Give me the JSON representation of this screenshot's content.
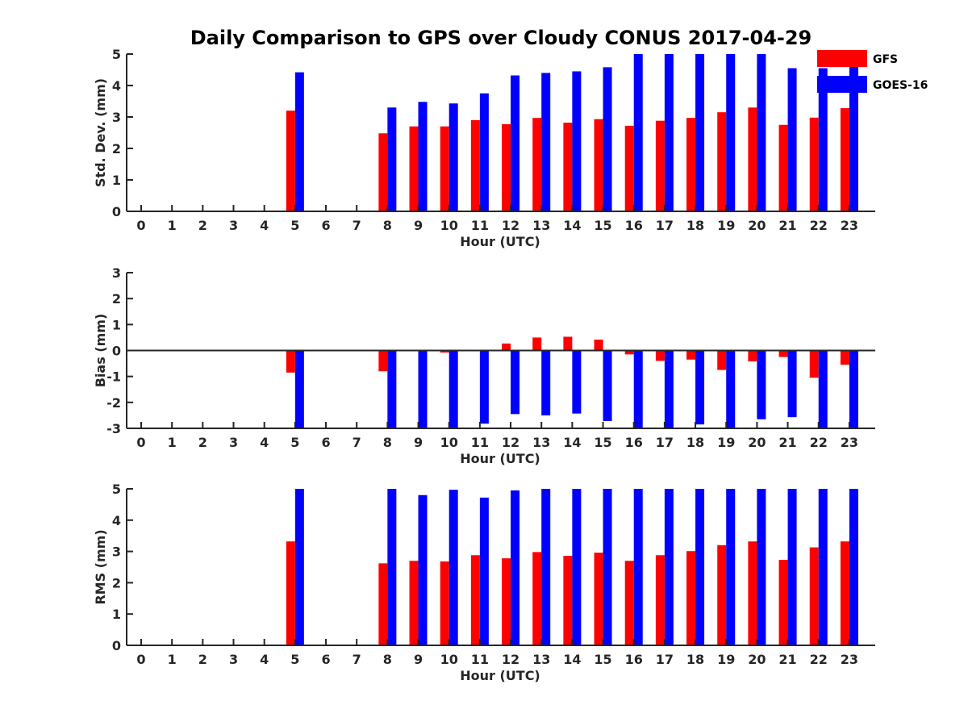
{
  "title": "Daily Comparison to GPS over Cloudy CONUS 2017-04-29",
  "colors": {
    "GFS": "#ff0000",
    "GOES-16": "#0000ff",
    "axis": "#262626"
  },
  "legend": {
    "placement": "top-right",
    "entries": [
      "GFS",
      "GOES-16"
    ]
  },
  "chart_data": [
    {
      "type": "bar",
      "ylabel": "Std. Dev. (mm)",
      "xlabel": "Hour (UTC)",
      "ylim": [
        0,
        5
      ],
      "yticks": [
        "0",
        "1",
        "2",
        "3",
        "4",
        "5"
      ],
      "categories": [
        "0",
        "1",
        "2",
        "3",
        "4",
        "5",
        "6",
        "7",
        "8",
        "9",
        "10",
        "11",
        "12",
        "13",
        "14",
        "15",
        "16",
        "17",
        "18",
        "19",
        "20",
        "21",
        "22",
        "23"
      ],
      "series": [
        {
          "name": "GFS",
          "values": [
            null,
            null,
            null,
            null,
            null,
            3.2,
            null,
            null,
            2.48,
            2.7,
            2.7,
            2.9,
            2.77,
            2.97,
            2.82,
            2.93,
            2.72,
            2.88,
            2.97,
            3.15,
            3.3,
            2.75,
            2.98,
            3.28
          ]
        },
        {
          "name": "GOES-16",
          "values": [
            null,
            null,
            null,
            null,
            null,
            4.42,
            null,
            null,
            3.3,
            3.48,
            3.43,
            3.75,
            4.32,
            4.4,
            4.45,
            4.58,
            5.0,
            5.0,
            5.0,
            5.0,
            5.0,
            4.55,
            4.55,
            4.8
          ]
        }
      ]
    },
    {
      "type": "bar",
      "ylabel": "Bias (mm)",
      "xlabel": "Hour (UTC)",
      "ylim": [
        -3,
        3
      ],
      "yticks": [
        "-3",
        "-2",
        "-1",
        "0",
        "1",
        "2",
        "3"
      ],
      "categories": [
        "0",
        "1",
        "2",
        "3",
        "4",
        "5",
        "6",
        "7",
        "8",
        "9",
        "10",
        "11",
        "12",
        "13",
        "14",
        "15",
        "16",
        "17",
        "18",
        "19",
        "20",
        "21",
        "22",
        "23"
      ],
      "series": [
        {
          "name": "GFS",
          "values": [
            null,
            null,
            null,
            null,
            null,
            -0.85,
            null,
            null,
            -0.8,
            0,
            -0.08,
            0,
            0.27,
            0.5,
            0.53,
            0.42,
            -0.15,
            -0.4,
            -0.35,
            -0.75,
            -0.42,
            -0.25,
            -1.05,
            -0.55
          ]
        },
        {
          "name": "GOES-16",
          "values": [
            null,
            null,
            null,
            null,
            null,
            -3.0,
            null,
            null,
            -3.0,
            -3.0,
            -3.0,
            -2.82,
            -2.45,
            -2.5,
            -2.43,
            -2.72,
            -3.0,
            -2.97,
            -2.85,
            -3.0,
            -2.65,
            -2.57,
            -3.0,
            -3.0
          ]
        }
      ]
    },
    {
      "type": "bar",
      "ylabel": "RMS (mm)",
      "xlabel": "Hour (UTC)",
      "ylim": [
        0,
        5
      ],
      "yticks": [
        "0",
        "1",
        "2",
        "3",
        "4",
        "5"
      ],
      "categories": [
        "0",
        "1",
        "2",
        "3",
        "4",
        "5",
        "6",
        "7",
        "8",
        "9",
        "10",
        "11",
        "12",
        "13",
        "14",
        "15",
        "16",
        "17",
        "18",
        "19",
        "20",
        "21",
        "22",
        "23"
      ],
      "series": [
        {
          "name": "GFS",
          "values": [
            null,
            null,
            null,
            null,
            null,
            3.32,
            null,
            null,
            2.62,
            2.7,
            2.68,
            2.88,
            2.78,
            2.98,
            2.86,
            2.96,
            2.7,
            2.88,
            3.01,
            3.2,
            3.32,
            2.73,
            3.13,
            3.32
          ]
        },
        {
          "name": "GOES-16",
          "values": [
            null,
            null,
            null,
            null,
            null,
            5.0,
            null,
            null,
            5.0,
            4.8,
            4.97,
            4.72,
            4.95,
            5.0,
            5.0,
            5.0,
            5.0,
            5.0,
            5.0,
            5.0,
            5.0,
            5.0,
            5.0,
            5.0
          ]
        }
      ]
    }
  ]
}
